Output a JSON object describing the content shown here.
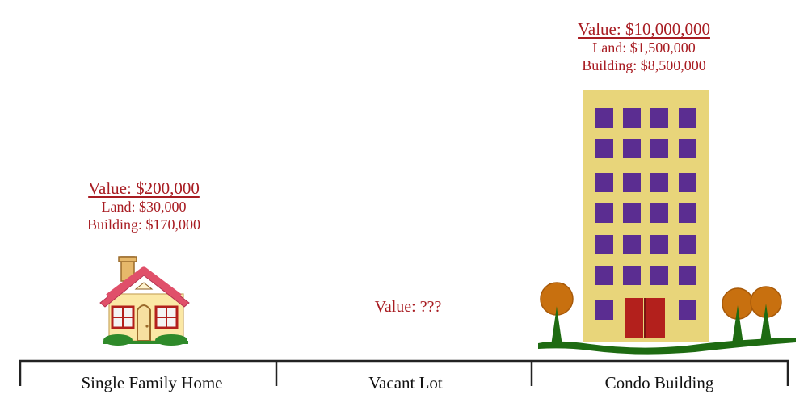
{
  "properties": [
    {
      "name": "Single Family Home",
      "value_label": "Value: $200,000",
      "land_label": "Land: $30,000",
      "building_label": "Building: $170,000"
    },
    {
      "name": "Vacant Lot",
      "value_label": "Value: ???"
    },
    {
      "name": "Condo Building",
      "value_label": "Value: $10,000,000",
      "land_label": "Land: $1,500,000",
      "building_label": "Building: $8,500,000"
    }
  ],
  "colors": {
    "value_text": "#a81c22",
    "building_wall": "#e8d57a",
    "windows": "#5b2d91",
    "door": "#b3201c",
    "grass": "#1e6b12",
    "tree_foliage": "#c8700f",
    "house_roof": "#e0506a",
    "house_wall": "#fbe8a5"
  },
  "icons": [
    "house-icon",
    "condo-building-icon",
    "tree-icon"
  ]
}
